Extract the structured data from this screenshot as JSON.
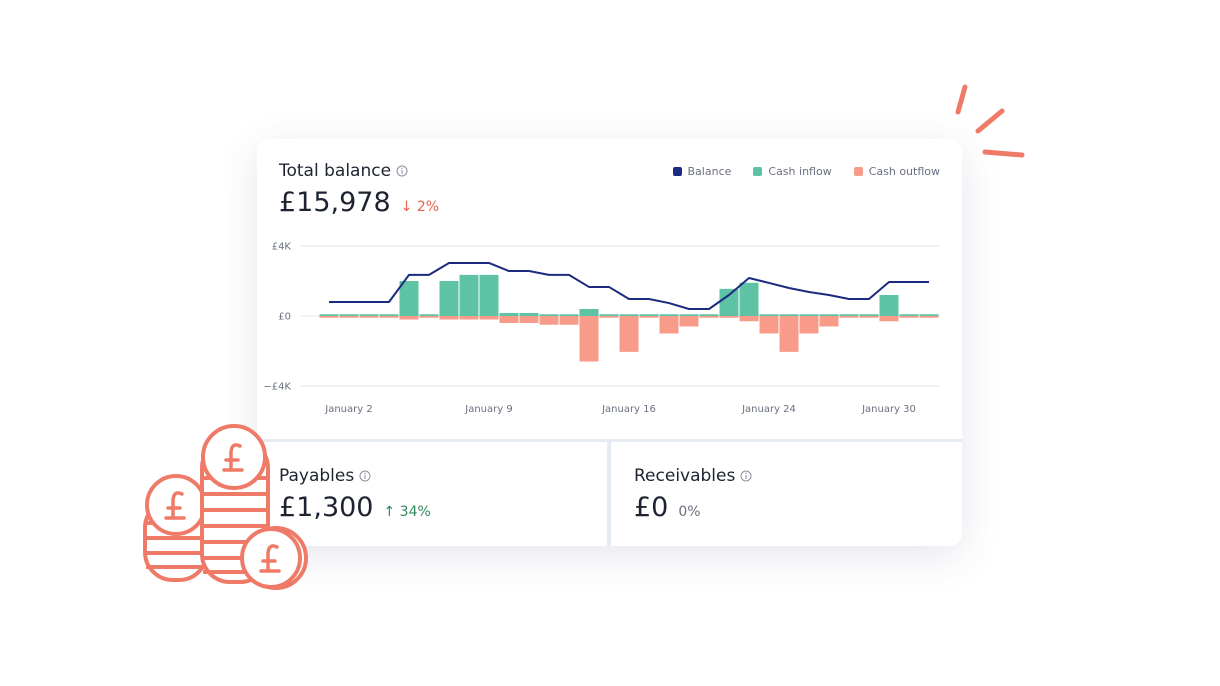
{
  "balance_card": {
    "title": "Total balance",
    "amount": "£15,978",
    "change": "↓ 2%"
  },
  "payables": {
    "title": "Payables",
    "amount": "£1,300",
    "change": "↑ 34%"
  },
  "receivables": {
    "title": "Receivables",
    "amount": "£0",
    "change": "0%"
  },
  "chart_data": {
    "type": "combo",
    "legend": "top-right",
    "grid": true,
    "categories": [
      null,
      "January 2",
      null,
      null,
      null,
      null,
      null,
      null,
      "January 9",
      null,
      null,
      null,
      null,
      null,
      null,
      "January 16",
      null,
      null,
      null,
      null,
      null,
      null,
      "January 24",
      null,
      null,
      null,
      null,
      null,
      "January 30",
      null,
      null
    ],
    "ylim": [
      -4000,
      4000
    ],
    "yticks": [
      {
        "value": 4000,
        "label": "£4K"
      },
      {
        "value": 0,
        "label": "£0"
      },
      {
        "value": -4000,
        "label": "−£4K"
      }
    ],
    "series": [
      {
        "name": "Balance",
        "type": "line",
        "color": "#1c2a80",
        "values": [
          800,
          800,
          800,
          800,
          2350,
          2350,
          3030,
          3030,
          3030,
          2570,
          2570,
          2350,
          2350,
          1660,
          1660,
          970,
          970,
          740,
          400,
          400,
          1200,
          2170,
          1890,
          1600,
          1370,
          1200,
          970,
          970,
          1940,
          1940,
          1940
        ]
      },
      {
        "name": "Cash inflow",
        "type": "bar",
        "color": "#5ec3a4",
        "values": [
          100,
          100,
          100,
          100,
          2000,
          100,
          2000,
          2350,
          2350,
          170,
          170,
          100,
          100,
          400,
          100,
          100,
          100,
          100,
          100,
          100,
          1550,
          1900,
          100,
          100,
          100,
          100,
          100,
          100,
          1200,
          100,
          100
        ]
      },
      {
        "name": "Cash outflow",
        "type": "bar",
        "color": "#f89b89",
        "values": [
          -100,
          -100,
          -100,
          -100,
          -200,
          -100,
          -200,
          -200,
          -200,
          -400,
          -400,
          -500,
          -500,
          -2600,
          -100,
          -2050,
          -100,
          -1000,
          -600,
          -100,
          -100,
          -300,
          -1000,
          -2050,
          -1000,
          -600,
          -100,
          -100,
          -300,
          -100,
          -100
        ]
      }
    ]
  }
}
